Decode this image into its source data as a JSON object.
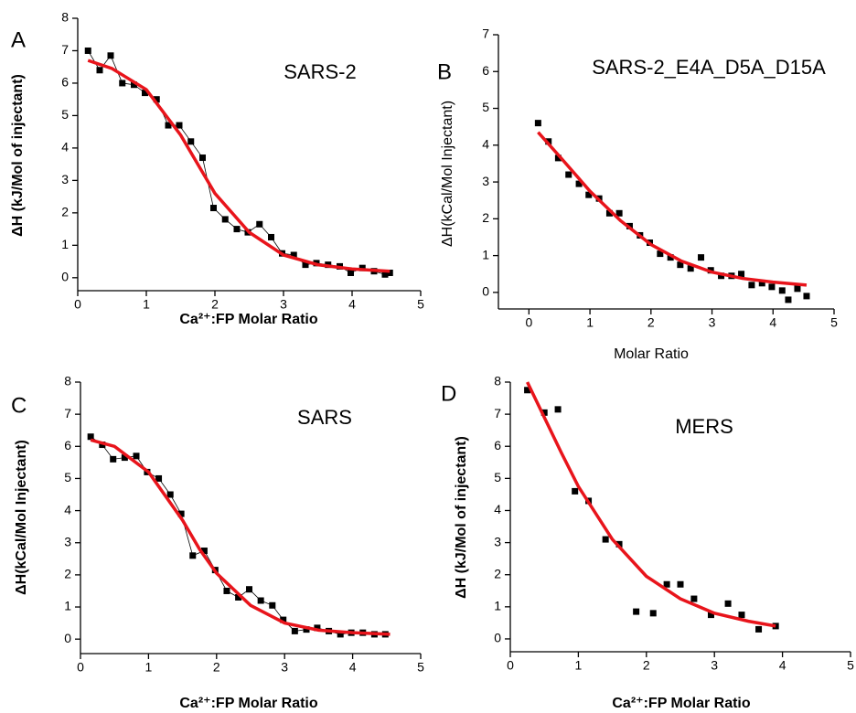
{
  "chart_data": [
    {
      "type": "scatter",
      "panel": "A",
      "title": "SARS-2",
      "xlabel": "Ca²⁺:FP Molar Ratio",
      "xlabel_bold": true,
      "ylabel": "ΔH (kJ/Mol of injectant)",
      "xlim": [
        0,
        5
      ],
      "ylim": [
        -0.4,
        8
      ],
      "xticks": [
        0,
        1,
        2,
        3,
        4,
        5
      ],
      "yticks": [
        0,
        1,
        2,
        3,
        4,
        5,
        6,
        7,
        8
      ],
      "series": [
        {
          "color": "#000000",
          "connected": true,
          "x": [
            0.15,
            0.32,
            0.48,
            0.65,
            0.82,
            0.98,
            1.15,
            1.32,
            1.48,
            1.65,
            1.82,
            1.98,
            2.15,
            2.32,
            2.48,
            2.65,
            2.82,
            2.98,
            3.15,
            3.32,
            3.48,
            3.65,
            3.82,
            3.98,
            4.15,
            4.32,
            4.48,
            4.55
          ],
          "values": [
            7.0,
            6.4,
            6.85,
            6.0,
            5.95,
            5.7,
            5.5,
            4.7,
            4.7,
            4.2,
            3.7,
            2.15,
            1.8,
            1.5,
            1.4,
            1.65,
            1.25,
            0.75,
            0.7,
            0.4,
            0.45,
            0.4,
            0.35,
            0.15,
            0.3,
            0.2,
            0.1,
            0.15
          ]
        },
        {
          "color": "#e8141b",
          "fit": true,
          "x": [
            0.15,
            0.5,
            1,
            1.5,
            1.75,
            2,
            2.5,
            3,
            3.5,
            4,
            4.55
          ],
          "values": [
            6.7,
            6.45,
            5.8,
            4.4,
            3.5,
            2.6,
            1.4,
            0.7,
            0.4,
            0.27,
            0.2
          ]
        }
      ]
    },
    {
      "type": "scatter",
      "panel": "B",
      "title": "SARS-2_E4A_D5A_D15A",
      "xlabel": "Molar Ratio",
      "xlabel_bold": false,
      "ylabel": "ΔH(kCal/Mol Injectant)",
      "xlim": [
        -0.5,
        5
      ],
      "ylim": [
        -0.45,
        7
      ],
      "xticks": [
        0,
        1,
        2,
        3,
        4,
        5
      ],
      "yticks": [
        0,
        1,
        2,
        3,
        4,
        5,
        6,
        7
      ],
      "series": [
        {
          "color": "#000000",
          "connected": false,
          "x": [
            0.15,
            0.32,
            0.48,
            0.65,
            0.82,
            0.98,
            1.15,
            1.32,
            1.48,
            1.65,
            1.82,
            1.98,
            2.15,
            2.32,
            2.48,
            2.65,
            2.82,
            2.98,
            3.15,
            3.32,
            3.48,
            3.65,
            3.82,
            3.98,
            4.15,
            4.25,
            4.4,
            4.55
          ],
          "values": [
            4.6,
            4.1,
            3.65,
            3.2,
            2.95,
            2.65,
            2.55,
            2.15,
            2.15,
            1.8,
            1.55,
            1.35,
            1.05,
            0.95,
            0.75,
            0.65,
            0.95,
            0.6,
            0.45,
            0.45,
            0.5,
            0.2,
            0.25,
            0.15,
            0.05,
            -0.2,
            0.1,
            -0.1
          ]
        },
        {
          "color": "#e8141b",
          "fit": true,
          "x": [
            0.15,
            0.5,
            1,
            1.5,
            2,
            2.5,
            3,
            3.5,
            4,
            4.55
          ],
          "values": [
            4.35,
            3.7,
            2.75,
            1.95,
            1.3,
            0.85,
            0.55,
            0.38,
            0.28,
            0.2
          ]
        }
      ]
    },
    {
      "type": "scatter",
      "panel": "C",
      "title": "SARS",
      "xlabel": "Ca²⁺:FP Molar Ratio",
      "xlabel_bold": true,
      "ylabel": "ΔH(kCal/Mol Injectant)",
      "xlim": [
        0,
        5
      ],
      "ylim": [
        -0.45,
        8
      ],
      "xticks": [
        0,
        1,
        2,
        3,
        4,
        5
      ],
      "yticks": [
        0,
        1,
        2,
        3,
        4,
        5,
        6,
        7,
        8
      ],
      "series": [
        {
          "color": "#000000",
          "connected": true,
          "x": [
            0.15,
            0.32,
            0.48,
            0.65,
            0.82,
            0.98,
            1.15,
            1.32,
            1.48,
            1.65,
            1.82,
            1.98,
            2.15,
            2.32,
            2.48,
            2.65,
            2.82,
            2.98,
            3.15,
            3.32,
            3.48,
            3.65,
            3.82,
            3.98,
            4.15,
            4.32,
            4.48
          ],
          "values": [
            6.3,
            6.05,
            5.6,
            5.65,
            5.7,
            5.2,
            5.0,
            4.5,
            3.9,
            2.6,
            2.75,
            2.15,
            1.5,
            1.3,
            1.55,
            1.2,
            1.05,
            0.6,
            0.25,
            0.3,
            0.35,
            0.25,
            0.15,
            0.2,
            0.2,
            0.15,
            0.15
          ]
        },
        {
          "color": "#e8141b",
          "fit": true,
          "x": [
            0.15,
            0.5,
            1,
            1.5,
            1.75,
            2,
            2.5,
            3,
            3.5,
            4,
            4.55
          ],
          "values": [
            6.2,
            6.0,
            5.2,
            3.7,
            2.8,
            2.05,
            1.05,
            0.5,
            0.28,
            0.2,
            0.15
          ]
        }
      ]
    },
    {
      "type": "scatter",
      "panel": "D",
      "title": "MERS",
      "xlabel": "Ca²⁺:FP Molar Ratio",
      "xlabel_bold": true,
      "ylabel": "ΔH (kJ/Mol of injectant)",
      "xlim": [
        0,
        5
      ],
      "ylim": [
        -0.4,
        8
      ],
      "xticks": [
        0,
        1,
        2,
        3,
        4,
        5
      ],
      "yticks": [
        0,
        1,
        2,
        3,
        4,
        5,
        6,
        7,
        8
      ],
      "series": [
        {
          "color": "#000000",
          "connected": false,
          "x": [
            0.25,
            0.5,
            0.7,
            0.95,
            1.15,
            1.4,
            1.6,
            1.85,
            2.1,
            2.3,
            2.5,
            2.7,
            2.95,
            3.2,
            3.4,
            3.65,
            3.9
          ],
          "values": [
            7.75,
            7.05,
            7.15,
            4.6,
            4.3,
            3.1,
            2.95,
            0.85,
            0.8,
            1.7,
            1.7,
            1.25,
            0.75,
            1.1,
            0.75,
            0.3,
            0.4
          ]
        },
        {
          "color": "#e8141b",
          "fit": true,
          "x": [
            0.25,
            0.5,
            0.75,
            1,
            1.5,
            2,
            2.5,
            3,
            3.5,
            3.9
          ],
          "values": [
            8.0,
            6.9,
            5.8,
            4.75,
            3.1,
            1.95,
            1.25,
            0.8,
            0.55,
            0.4
          ]
        }
      ]
    }
  ]
}
